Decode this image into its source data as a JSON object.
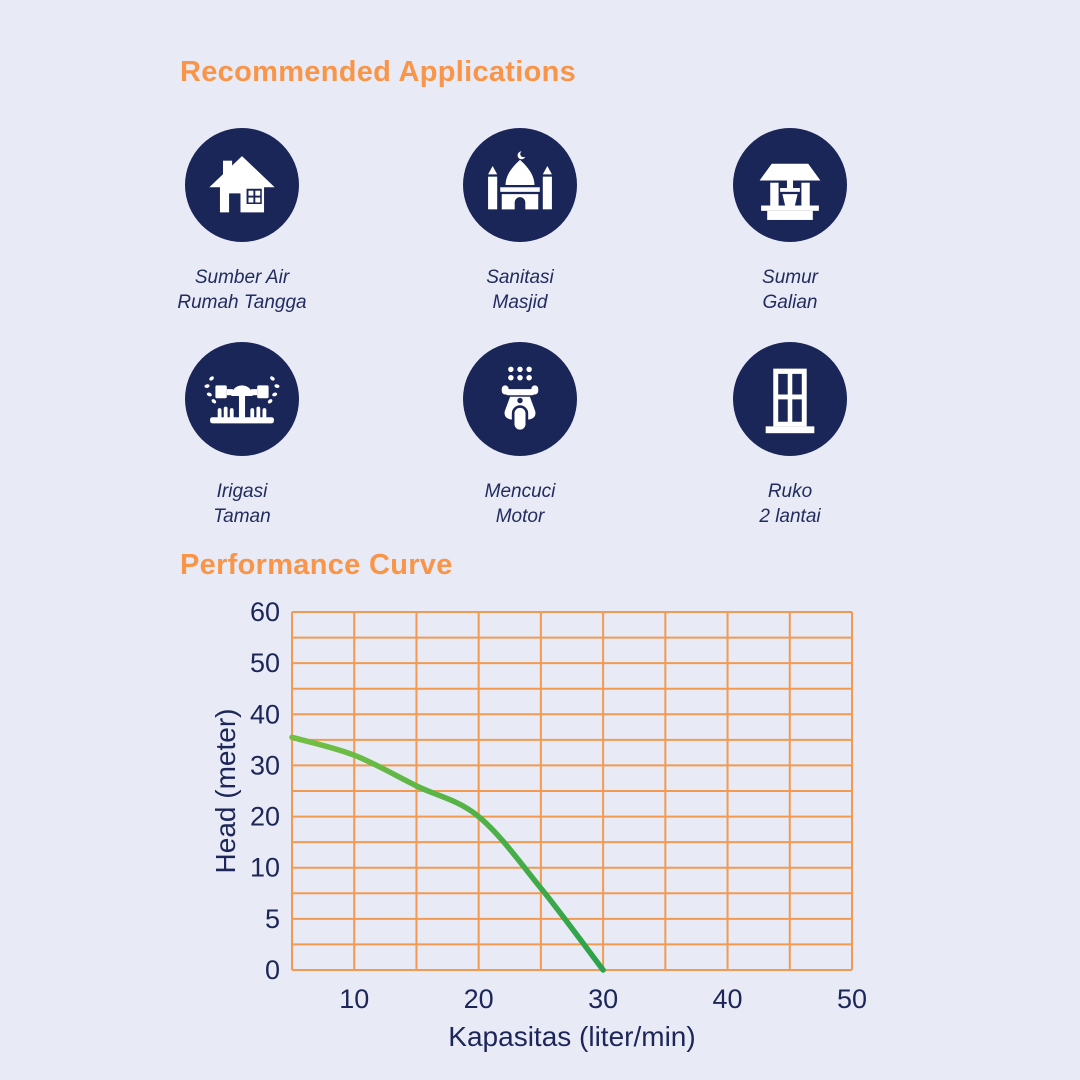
{
  "page": {
    "background_color": "#e8eaf5",
    "accent_orange": "#f99549",
    "navy": "#1a2558",
    "grid_orange": "#f29a52",
    "curve_green_start": "#74c044",
    "curve_green_end": "#2aa14b"
  },
  "headings": {
    "applications": "Recommended Applications",
    "performance": "Performance Curve"
  },
  "applications": [
    {
      "icon": "house-icon",
      "lines": [
        "Sumber Air",
        "Rumah Tangga"
      ]
    },
    {
      "icon": "mosque-icon",
      "lines": [
        "Sanitasi",
        "Masjid"
      ]
    },
    {
      "icon": "well-icon",
      "lines": [
        "Sumur",
        "Galian"
      ]
    },
    {
      "icon": "sprinkler-icon",
      "lines": [
        "Irigasi",
        "Taman"
      ]
    },
    {
      "icon": "scooter-icon",
      "lines": [
        "Mencuci",
        "Motor"
      ]
    },
    {
      "icon": "building-icon",
      "lines": [
        "Ruko",
        "2 lantai"
      ]
    }
  ],
  "chart_data": {
    "type": "line",
    "title": "Performance Curve",
    "xlabel": "Kapasitas (liter/min)",
    "ylabel": "Head (meter)",
    "x_range": [
      5,
      50
    ],
    "x_grid_step": 5,
    "x_tick_labels": [
      10,
      20,
      30,
      40,
      50
    ],
    "y_tick_labels_bottom_to_top": [
      0,
      5,
      10,
      20,
      30,
      40,
      50,
      60
    ],
    "y_axis_note": "tick labels are equally spaced on the axis (non-linear scale below 10)",
    "grid": true,
    "legend": "none",
    "series": [
      {
        "name": "head-vs-capacity",
        "points": [
          [
            5,
            35.5
          ],
          [
            10,
            32
          ],
          [
            15,
            26
          ],
          [
            20,
            20
          ],
          [
            25,
            8
          ],
          [
            30,
            0
          ]
        ]
      }
    ]
  }
}
